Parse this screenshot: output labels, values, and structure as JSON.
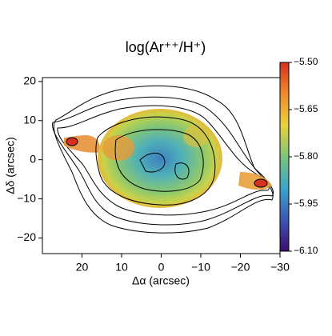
{
  "chart_data": {
    "type": "image-map",
    "title": "log(Ar⁺⁺/H⁺)",
    "x_label": "Δα (arcsec)",
    "y_label": "Δδ (arcsec)",
    "xlim": [
      30,
      -30
    ],
    "ylim": [
      -24,
      21
    ],
    "xticks": [
      20,
      10,
      0,
      {
        "value": -10,
        "label": "−10"
      },
      {
        "value": -20,
        "label": "−20"
      },
      {
        "value": -30,
        "label": "−30"
      }
    ],
    "yticks": [
      {
        "value": -20,
        "label": "−20"
      },
      {
        "value": -10,
        "label": "−10"
      },
      0,
      10,
      20
    ],
    "colorbar": {
      "lim": [
        -6.1,
        -5.5
      ],
      "ticks": [
        {
          "value": -6.1,
          "label": "−6.10"
        },
        {
          "value": -5.95,
          "label": "−5.95"
        },
        {
          "value": -5.8,
          "label": "−5.80"
        },
        {
          "value": -5.65,
          "label": "−5.65"
        },
        {
          "value": -5.5,
          "label": "−5.50"
        }
      ],
      "colors": [
        "#3b0f70",
        "#3d55b3",
        "#3aa6c9",
        "#7cc47a",
        "#e8d23a",
        "#f08a2b",
        "#d7301f"
      ]
    }
  }
}
